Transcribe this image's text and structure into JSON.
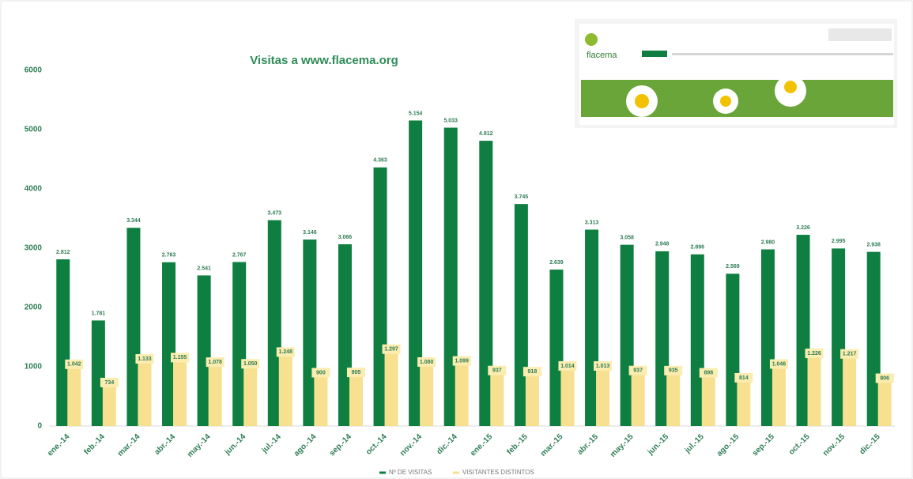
{
  "chart_data": {
    "type": "bar",
    "title": "Visitas a www.flacema.org",
    "categories": [
      "ene.-14",
      "feb.-14",
      "mar.-14",
      "abr.-14",
      "may.-14",
      "jun.-14",
      "jul.-14",
      "ago.-14",
      "sep.-14",
      "oct.-14",
      "nov.-14",
      "dic.-14",
      "ene.-15",
      "feb.-15",
      "mar.-15",
      "abr.-15",
      "may.-15",
      "jun.-15",
      "jul.-15",
      "ago.-15",
      "sep.-15",
      "oct.-15",
      "nov.-15",
      "dic.-15"
    ],
    "series": [
      {
        "name": "Nº DE VISITAS",
        "color": "#0e7f41",
        "values": [
          2812,
          1781,
          3344,
          2763,
          2541,
          2767,
          3473,
          3146,
          3066,
          4363,
          5154,
          5033,
          4812,
          3745,
          2639,
          3313,
          3058,
          2948,
          2896,
          2569,
          2980,
          3226,
          2995,
          2938
        ],
        "value_labels": [
          "2.812",
          "1.781",
          "3.344",
          "2.763",
          "2.541",
          "2.767",
          "3.473",
          "3.146",
          "3.066",
          "4.363",
          "5.154",
          "5.033",
          "4.812",
          "3.745",
          "2.639",
          "3.313",
          "3.058",
          "2.948",
          "2.896",
          "2.569",
          "2.980",
          "3.226",
          "2.995",
          "2.938"
        ]
      },
      {
        "name": "VISITANTES DISTINTOS",
        "color": "#f7e08f",
        "values": [
          1042,
          734,
          1133,
          1155,
          1078,
          1050,
          1248,
          900,
          905,
          1297,
          1080,
          1099,
          937,
          918,
          1014,
          1013,
          937,
          935,
          898,
          814,
          1046,
          1226,
          1217,
          806
        ],
        "value_labels": [
          "1.042",
          "734",
          "1.133",
          "1.155",
          "1.078",
          "1.050",
          "1.248",
          "900",
          "905",
          "1.297",
          "1.080",
          "1.099",
          "937",
          "918",
          "1.014",
          "1.013",
          "937",
          "935",
          "898",
          "814",
          "1.046",
          "1.226",
          "1.217",
          "806"
        ]
      }
    ],
    "ylim": [
      0,
      6000
    ],
    "yticks": [
      0,
      1000,
      2000,
      3000,
      4000,
      5000,
      6000
    ],
    "grid": false,
    "legend": "bottom"
  },
  "inset": {
    "logo": "flacema"
  }
}
